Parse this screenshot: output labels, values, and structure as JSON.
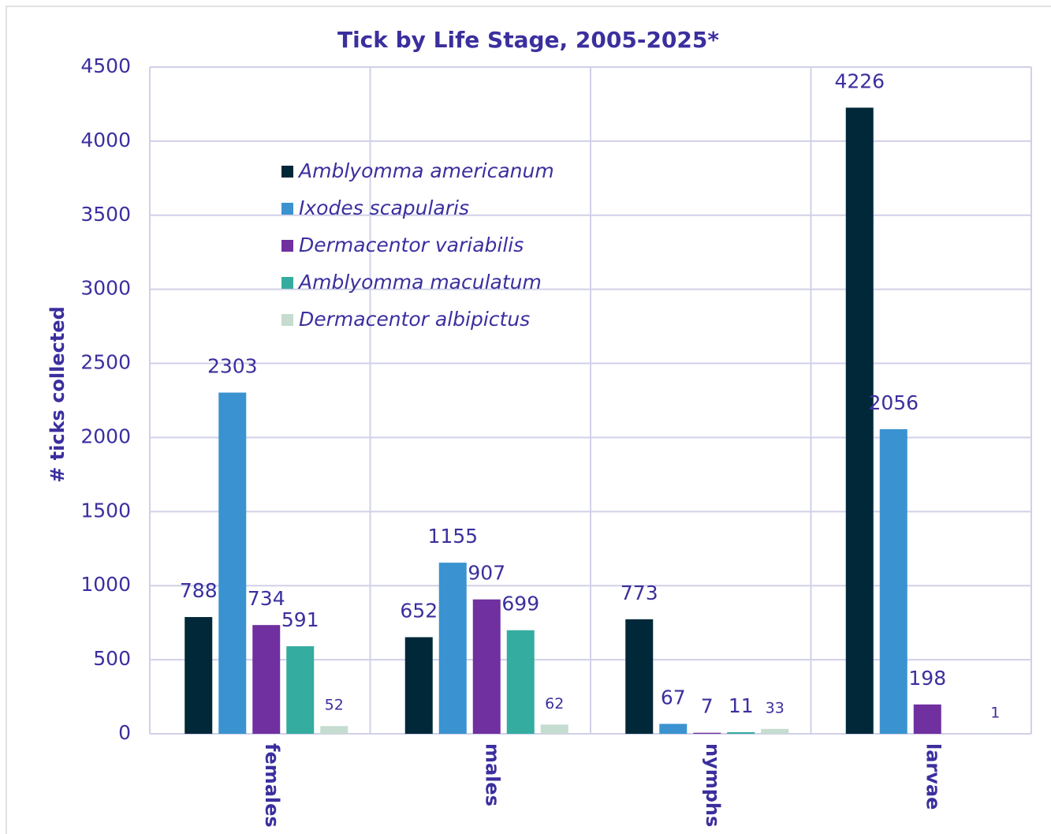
{
  "chart_data": {
    "type": "bar",
    "title": "Tick by Life Stage, 2005-2025*",
    "y_label": "# ticks collected",
    "categories": [
      "females",
      "males",
      "nymphs",
      "larvae"
    ],
    "series": [
      {
        "name": "Amblyomma americanum",
        "color": "#002838",
        "values": [
          788,
          652,
          773,
          4226
        ]
      },
      {
        "name": "Ixodes scapularis",
        "color": "#3a93d0",
        "values": [
          2303,
          1155,
          67,
          2056
        ]
      },
      {
        "name": "Dermacentor variabilis",
        "color": "#7030a0",
        "values": [
          734,
          907,
          7,
          198
        ]
      },
      {
        "name": "Amblyomma maculatum",
        "color": "#35aca0",
        "values": [
          591,
          699,
          11,
          null
        ]
      },
      {
        "name": "Dermacentor albipictus",
        "color": "#c5dcd0",
        "values": [
          52,
          62,
          33,
          1
        ]
      }
    ],
    "ylim": [
      0,
      4500
    ],
    "yticks": [
      0,
      500,
      1000,
      1500,
      2000,
      2500,
      3000,
      3500,
      4000,
      4500
    ],
    "grid": true
  }
}
